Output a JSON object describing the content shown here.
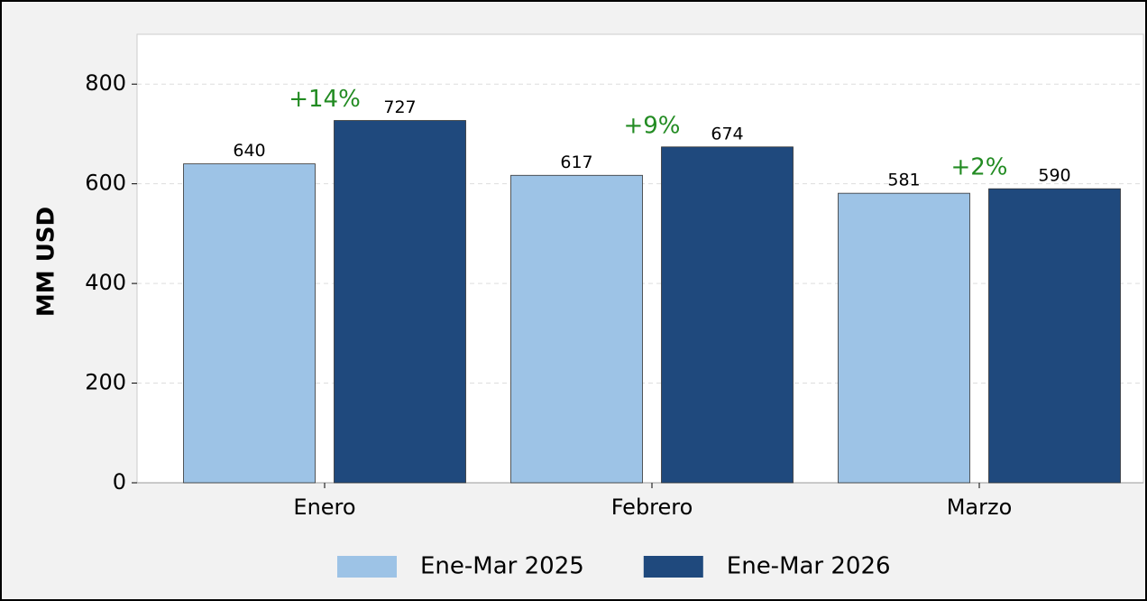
{
  "chart_data": {
    "type": "bar",
    "ylabel": "MM USD",
    "categories": [
      "Enero",
      "Febrero",
      "Marzo"
    ],
    "series": [
      {
        "name": "Ene-Mar 2025",
        "color": "#9dc3e6",
        "values": [
          640,
          617,
          581
        ]
      },
      {
        "name": "Ene-Mar 2026",
        "color": "#1f497d",
        "values": [
          727,
          674,
          590
        ]
      }
    ],
    "annotations": [
      "+14%",
      "+9%",
      "+2%"
    ],
    "annotation_color": "#228b22",
    "ylim": [
      0,
      900
    ],
    "yticks": [
      0,
      200,
      400,
      600,
      800
    ],
    "grid": true,
    "legend": "bottom"
  }
}
